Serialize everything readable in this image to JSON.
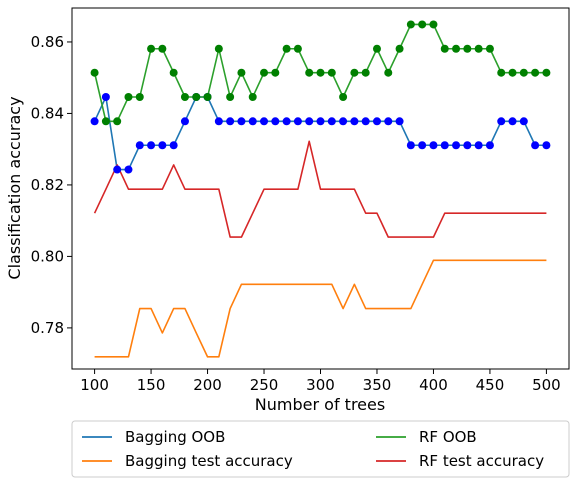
{
  "chart_data": {
    "type": "line",
    "title": "",
    "xlabel": "Number of trees",
    "ylabel": "Classification accuracy",
    "xlim": [
      80,
      520
    ],
    "ylim": [
      0.7685,
      0.8695
    ],
    "xticks": [
      100,
      150,
      200,
      250,
      300,
      350,
      400,
      450,
      500
    ],
    "yticks": [
      0.78,
      0.8,
      0.82,
      0.84,
      0.86
    ],
    "ytick_labels": [
      "0.78",
      "0.80",
      "0.82",
      "0.84",
      "0.86"
    ],
    "grid": false,
    "legend": {
      "placement": "below",
      "columns": 2
    },
    "x": [
      100,
      110,
      120,
      130,
      140,
      150,
      160,
      170,
      180,
      190,
      200,
      210,
      220,
      230,
      240,
      250,
      260,
      270,
      280,
      290,
      300,
      310,
      320,
      330,
      340,
      350,
      360,
      370,
      380,
      390,
      400,
      410,
      420,
      430,
      440,
      450,
      460,
      470,
      480,
      490,
      500
    ],
    "series": [
      {
        "name": "Bagging OOB",
        "color": "#1f77b4",
        "marker_color": "#0000ff",
        "markers": true,
        "values": [
          0.8378,
          0.8446,
          0.8243,
          0.8243,
          0.8311,
          0.8311,
          0.8311,
          0.8311,
          0.8378,
          0.8446,
          0.8446,
          0.8378,
          0.8378,
          0.8378,
          0.8378,
          0.8378,
          0.8378,
          0.8378,
          0.8378,
          0.8378,
          0.8378,
          0.8378,
          0.8378,
          0.8378,
          0.8378,
          0.8378,
          0.8378,
          0.8378,
          0.8311,
          0.8311,
          0.8311,
          0.8311,
          0.8311,
          0.8311,
          0.8311,
          0.8311,
          0.8378,
          0.8378,
          0.8378,
          0.8311,
          0.8311
        ]
      },
      {
        "name": "Bagging test accuracy",
        "color": "#ff7f0e",
        "markers": false,
        "values": [
          0.7719,
          0.7719,
          0.7719,
          0.7719,
          0.7854,
          0.7854,
          0.7786,
          0.7854,
          0.7854,
          0.7786,
          0.7719,
          0.7719,
          0.7854,
          0.7922,
          0.7922,
          0.7922,
          0.7922,
          0.7922,
          0.7922,
          0.7922,
          0.7922,
          0.7922,
          0.7854,
          0.7922,
          0.7854,
          0.7854,
          0.7854,
          0.7854,
          0.7854,
          0.7922,
          0.7989,
          0.7989,
          0.7989,
          0.7989,
          0.7989,
          0.7989,
          0.7989,
          0.7989,
          0.7989,
          0.7989,
          0.7989
        ]
      },
      {
        "name": "RF OOB",
        "color": "#2ca02c",
        "marker_color": "#008000",
        "markers": true,
        "values": [
          0.8514,
          0.8378,
          0.8378,
          0.8446,
          0.8446,
          0.8581,
          0.8581,
          0.8514,
          0.8446,
          0.8446,
          0.8446,
          0.8581,
          0.8446,
          0.8514,
          0.8446,
          0.8514,
          0.8514,
          0.8581,
          0.8581,
          0.8514,
          0.8514,
          0.8514,
          0.8446,
          0.8514,
          0.8514,
          0.8581,
          0.8514,
          0.8581,
          0.8649,
          0.8649,
          0.8649,
          0.8581,
          0.8581,
          0.8581,
          0.8581,
          0.8581,
          0.8514,
          0.8514,
          0.8514,
          0.8514,
          0.8514
        ]
      },
      {
        "name": "RF test accuracy",
        "color": "#d62728",
        "markers": false,
        "values": [
          0.8121,
          0.8188,
          0.8256,
          0.8188,
          0.8188,
          0.8188,
          0.8188,
          0.8256,
          0.8188,
          0.8188,
          0.8188,
          0.8188,
          0.8054,
          0.8054,
          0.8121,
          0.8188,
          0.8188,
          0.8188,
          0.8188,
          0.8322,
          0.8188,
          0.8188,
          0.8188,
          0.8188,
          0.8121,
          0.8121,
          0.8054,
          0.8054,
          0.8054,
          0.8054,
          0.8054,
          0.8121,
          0.8121,
          0.8121,
          0.8121,
          0.8121,
          0.8121,
          0.8121,
          0.8121,
          0.8121,
          0.8121
        ]
      }
    ]
  }
}
